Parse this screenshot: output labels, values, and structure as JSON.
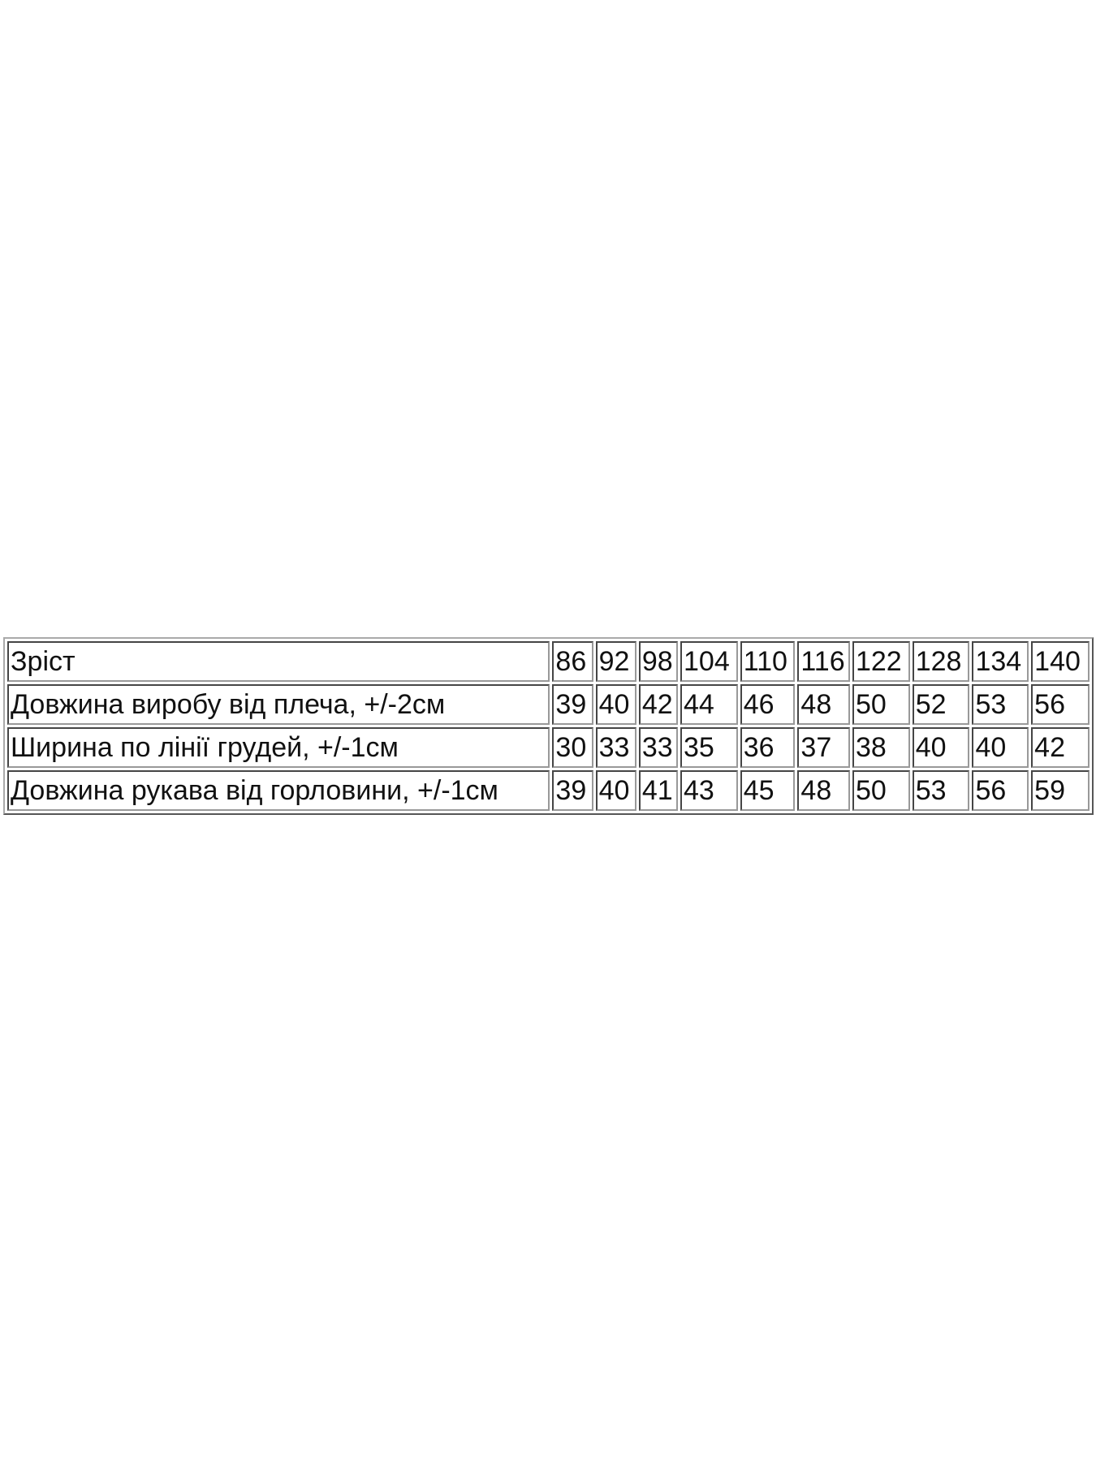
{
  "table": {
    "rows": [
      {
        "label": "Зріст",
        "values": [
          "86",
          "92",
          "98",
          "104",
          "110",
          "116",
          "122",
          "128",
          "134",
          "140"
        ]
      },
      {
        "label": "Довжина виробу від плеча, +/-2см",
        "values": [
          "39",
          "40",
          "42",
          "44",
          "46",
          "48",
          "50",
          "52",
          "53",
          "56"
        ]
      },
      {
        "label": "Ширина по лінії грудей, +/-1см",
        "values": [
          "30",
          "33",
          "33",
          "35",
          "36",
          "37",
          "38",
          "40",
          "40",
          "42"
        ]
      },
      {
        "label": "Довжина рукава від горловини, +/-1см",
        "values": [
          "39",
          "40",
          "41",
          "43",
          "45",
          "48",
          "50",
          "53",
          "56",
          "59"
        ]
      }
    ]
  }
}
